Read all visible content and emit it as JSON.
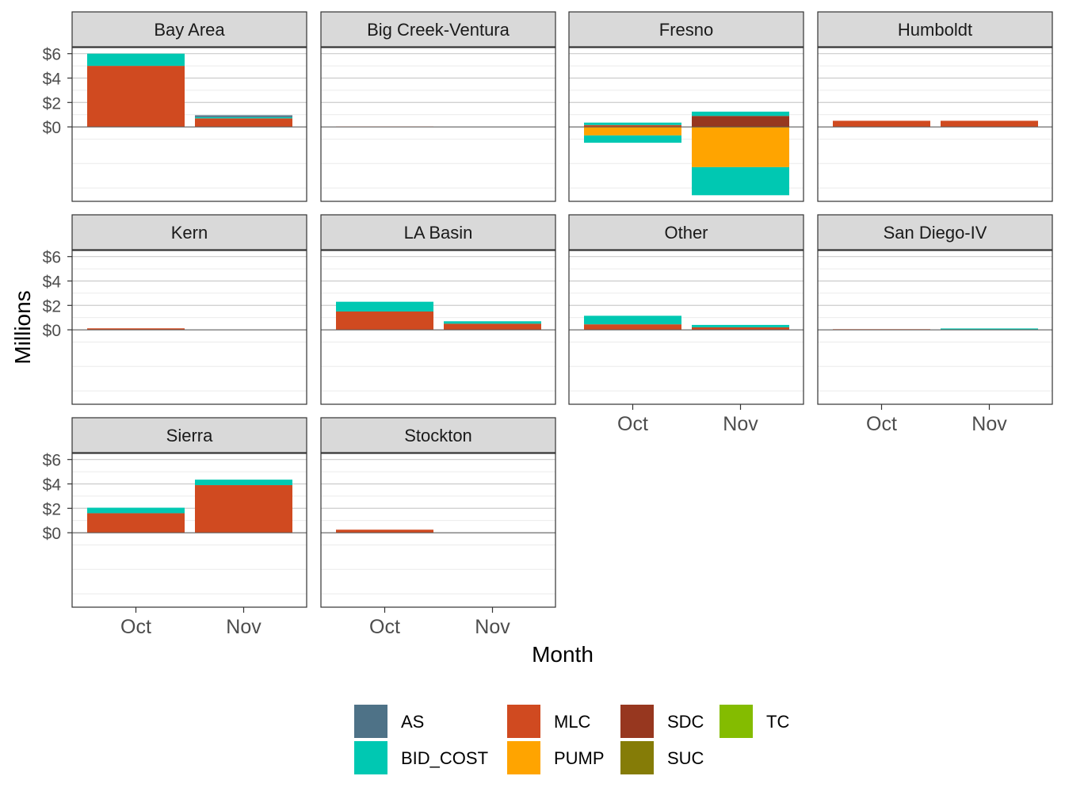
{
  "chart_data": {
    "type": "bar",
    "stacked": true,
    "faceted": true,
    "ylabel": "Millions",
    "xlabel": "Month",
    "categories": [
      "Oct",
      "Nov"
    ],
    "y_ticks": [
      0,
      2,
      4,
      6
    ],
    "y_tick_labels": [
      "$0",
      "$2",
      "$4",
      "$6"
    ],
    "ylim": [
      -6.1,
      6.5
    ],
    "grid": true,
    "legend_position": "bottom",
    "legend": [
      {
        "key": "AS",
        "label": "AS",
        "color": "#4e7287"
      },
      {
        "key": "BID_COST",
        "label": "BID_COST",
        "color": "#00c8b2"
      },
      {
        "key": "MLC",
        "label": "MLC",
        "color": "#d04a20"
      },
      {
        "key": "PUMP",
        "label": "PUMP",
        "color": "#ffa400"
      },
      {
        "key": "SDC",
        "label": "SDC",
        "color": "#97371f"
      },
      {
        "key": "SUC",
        "label": "SUC",
        "color": "#857c07"
      },
      {
        "key": "TC",
        "label": "TC",
        "color": "#84bc00"
      }
    ],
    "panels": [
      {
        "name": "Bay Area",
        "bars": [
          [
            {
              "type": "MLC",
              "value": 5.0
            },
            {
              "type": "BID_COST",
              "value": 1.0
            }
          ],
          [
            {
              "type": "MLC",
              "value": 0.7
            },
            {
              "type": "BID_COST",
              "value": 0.1
            },
            {
              "type": "AS",
              "value": 0.15
            }
          ]
        ]
      },
      {
        "name": "Big Creek-Ventura",
        "bars": [
          [
            {
              "type": "MLC",
              "value": 0.03
            }
          ],
          []
        ]
      },
      {
        "name": "Fresno",
        "bars": [
          [
            {
              "type": "MLC",
              "value": 0.15
            },
            {
              "type": "BID_COST",
              "value": 0.2
            },
            {
              "type": "PUMP",
              "value": -0.7
            },
            {
              "type": "BID_COST",
              "value": -0.6
            }
          ],
          [
            {
              "type": "SDC",
              "value": 0.9
            },
            {
              "type": "BID_COST",
              "value": 0.35
            },
            {
              "type": "PUMP",
              "value": -3.3
            },
            {
              "type": "BID_COST",
              "value": -2.3
            }
          ]
        ]
      },
      {
        "name": "Humboldt",
        "bars": [
          [
            {
              "type": "MLC",
              "value": 0.5
            }
          ],
          [
            {
              "type": "MLC",
              "value": 0.5
            }
          ]
        ]
      },
      {
        "name": "Kern",
        "bars": [
          [
            {
              "type": "MLC",
              "value": 0.12
            }
          ],
          []
        ]
      },
      {
        "name": "LA Basin",
        "bars": [
          [
            {
              "type": "MLC",
              "value": 1.5
            },
            {
              "type": "BID_COST",
              "value": 0.8
            }
          ],
          [
            {
              "type": "MLC",
              "value": 0.5
            },
            {
              "type": "BID_COST",
              "value": 0.2
            }
          ]
        ]
      },
      {
        "name": "Other",
        "bars": [
          [
            {
              "type": "MLC",
              "value": 0.45
            },
            {
              "type": "BID_COST",
              "value": 0.7
            }
          ],
          [
            {
              "type": "MLC",
              "value": 0.2
            },
            {
              "type": "BID_COST",
              "value": 0.2
            }
          ]
        ]
      },
      {
        "name": "San Diego-IV",
        "bars": [
          [
            {
              "type": "MLC",
              "value": 0.05
            }
          ],
          [
            {
              "type": "MLC",
              "value": 0.03
            },
            {
              "type": "BID_COST",
              "value": 0.08
            }
          ]
        ]
      },
      {
        "name": "Sierra",
        "bars": [
          [
            {
              "type": "MLC",
              "value": 1.6
            },
            {
              "type": "BID_COST",
              "value": 0.45
            }
          ],
          [
            {
              "type": "MLC",
              "value": 3.9
            },
            {
              "type": "BID_COST",
              "value": 0.45
            }
          ]
        ]
      },
      {
        "name": "Stockton",
        "bars": [
          [
            {
              "type": "MLC",
              "value": 0.25
            }
          ],
          []
        ]
      }
    ]
  }
}
